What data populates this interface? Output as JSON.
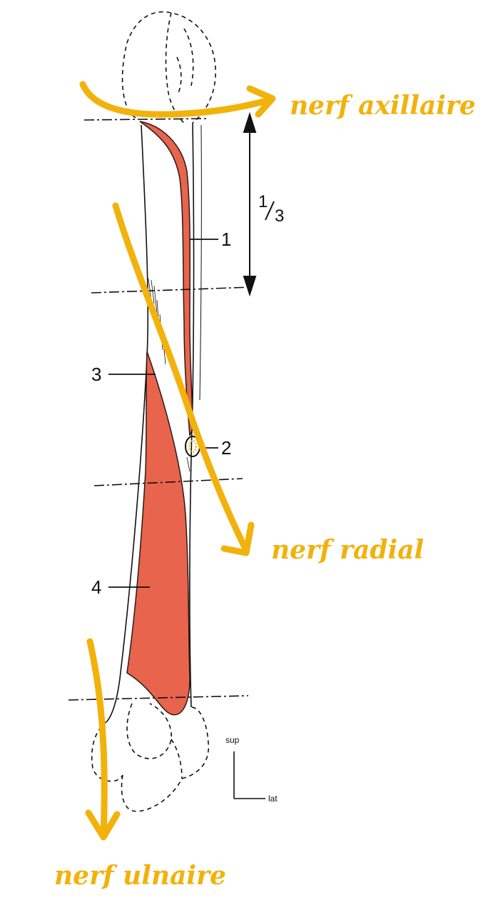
{
  "diagram": {
    "labels": {
      "one": "1",
      "two": "2",
      "three": "3",
      "four": "4",
      "third": "1/3",
      "third_num": "1",
      "third_den": "3",
      "sup": "sup",
      "lat": "lat"
    },
    "annotations": {
      "axillary": "nerf axillaire",
      "radial": "nerf radial",
      "ulnar": "nerf ulnaire"
    },
    "colors": {
      "muscle": "#e8644c",
      "muscle_outline": "#2a1a14",
      "annotation": "#f2b20c",
      "line": "#111111"
    }
  }
}
